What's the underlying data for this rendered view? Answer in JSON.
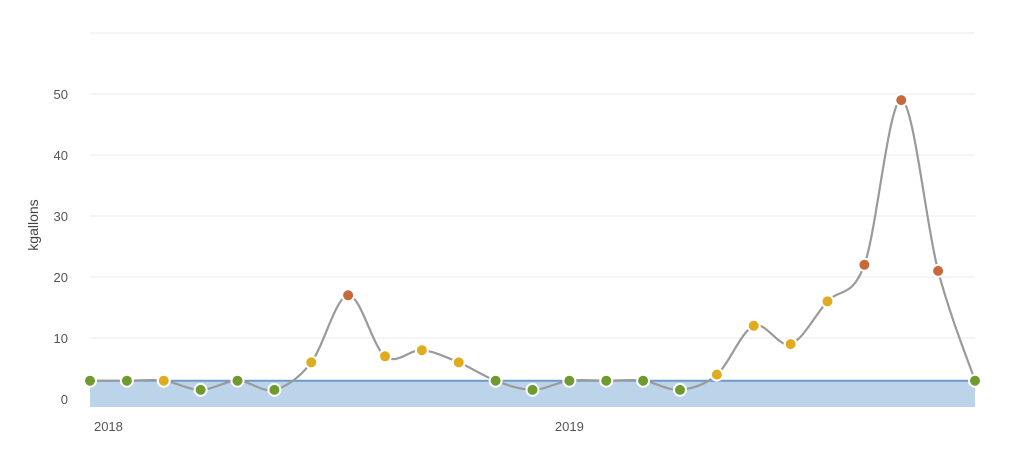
{
  "chart_data": {
    "type": "line",
    "ylabel": "kgallons",
    "ylim": [
      0,
      60
    ],
    "y_ticks": [
      0,
      10,
      20,
      30,
      40,
      50
    ],
    "x_tick_labels": [
      {
        "label": "2018",
        "x": 0.5
      },
      {
        "label": "2019",
        "x": 13
      }
    ],
    "x": [
      0,
      1,
      2,
      3,
      4,
      5,
      6,
      7,
      8,
      9,
      10,
      11,
      12,
      13,
      14,
      15,
      16,
      17,
      18,
      19,
      20,
      21,
      22,
      23,
      24
    ],
    "series": [
      {
        "values": [
          3,
          3,
          3,
          1.5,
          3,
          1.5,
          6,
          17,
          7,
          8,
          6,
          3,
          1.5,
          3,
          3,
          3,
          1.5,
          4,
          12,
          9,
          16,
          22,
          49,
          21,
          3
        ],
        "levels": [
          "low",
          "low",
          "medium",
          "low",
          "low",
          "low",
          "medium",
          "high",
          "medium",
          "medium",
          "medium",
          "low",
          "low",
          "low",
          "low",
          "low",
          "low",
          "medium",
          "medium",
          "medium",
          "medium",
          "high",
          "high",
          "high",
          "low"
        ]
      }
    ],
    "baseline": 3,
    "grid": true,
    "colors": {
      "line": "#9a9a9a",
      "low": "#6f9a2e",
      "medium": "#e0ab1e",
      "high": "#c8693b",
      "band_fill": "#bcd4ea",
      "baseline_line": "#6e9ac9",
      "grid": "#ebebeb"
    }
  }
}
